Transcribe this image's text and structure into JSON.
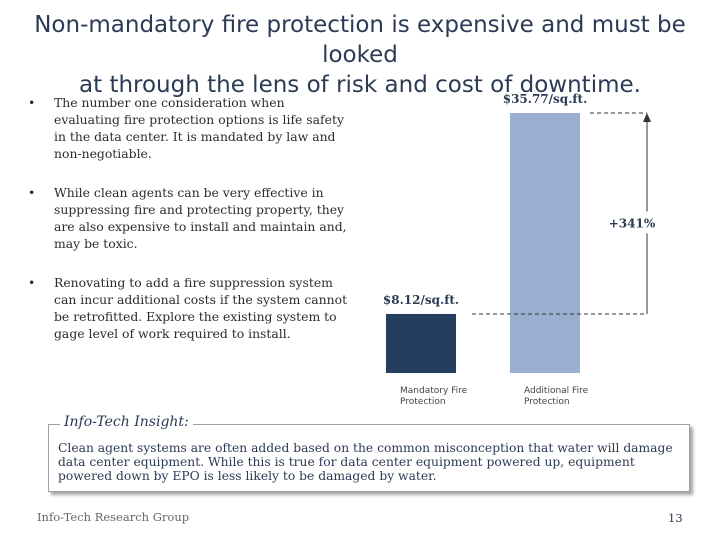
{
  "title": {
    "line1": "Non-mandatory fire protection is expensive and must be looked",
    "line2": "at through the lens of risk and cost of downtime."
  },
  "bullets": [
    "The number one consideration when evaluating fire protection options is life safety in the data center. It is mandated by law and non-negotiable.",
    "While clean agents can be very effective in suppressing fire and protecting property, they are also expensive to install and maintain and, may be toxic.",
    "Renovating to add a fire suppression system can incur additional costs if the system cannot be retrofitted. Explore the existing system to gage level of work required to install."
  ],
  "bullet_symbol": "•",
  "chart_data": {
    "type": "bar",
    "categories": [
      "Mandatory Fire Protection",
      "Additional Fire Protection"
    ],
    "values": [
      8.12,
      35.77
    ],
    "data_labels": [
      "$8.12/sq.ft.",
      "$35.77/sq.ft."
    ],
    "annotation": "+341%",
    "colors": [
      "#253d5e",
      "#9aafd0"
    ],
    "title": "",
    "xlabel": "",
    "ylabel": "",
    "ylim": [
      0,
      35.77
    ],
    "grid": false,
    "legend": "none"
  },
  "insight": {
    "label": "Info-Tech Insight:",
    "text": "Clean agent systems are often added based on the common misconception that water will damage data center equipment. While this is true for data center equipment powered up, equipment powered down by EPO is less likely to be damaged by water."
  },
  "footer": {
    "company": "Info-Tech Research Group",
    "page": "13"
  }
}
